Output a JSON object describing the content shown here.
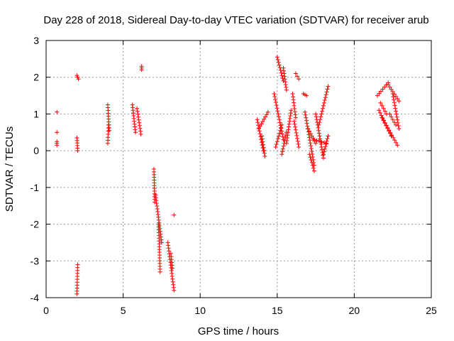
{
  "chart_data": {
    "type": "scatter",
    "title": "Day 228 of 2018, Sidereal Day-to-day VTEC variation (SDTVAR) for receiver arub",
    "xlabel": "GPS time / hours",
    "ylabel": "SDTVAR / TECUs",
    "xlim": [
      0,
      25
    ],
    "ylim": [
      -4,
      3
    ],
    "xticks": [
      0,
      5,
      10,
      15,
      20,
      25
    ],
    "yticks": [
      -4,
      -3,
      -2,
      -1,
      0,
      1,
      2,
      3
    ],
    "grid": true,
    "marker": "+",
    "color": "#ff0000",
    "series": [
      {
        "name": "SDTVAR",
        "segments": [
          [
            [
              0.7,
              1.05
            ]
          ],
          [
            [
              0.7,
              0.5
            ]
          ],
          [
            [
              0.7,
              0.15
            ],
            [
              0.7,
              0.25
            ]
          ],
          [
            [
              2.0,
              2.05
            ],
            [
              2.1,
              1.95
            ]
          ],
          [
            [
              2.0,
              0.35
            ],
            [
              2.05,
              0.0
            ]
          ],
          [
            [
              2.05,
              -3.1
            ],
            [
              2.0,
              -3.9
            ]
          ],
          [
            [
              4.0,
              1.25
            ],
            [
              4.1,
              0.55
            ]
          ],
          [
            [
              4.05,
              0.7
            ],
            [
              4.0,
              0.2
            ]
          ],
          [
            [
              5.6,
              1.25
            ],
            [
              5.8,
              0.5
            ]
          ],
          [
            [
              5.9,
              1.15
            ],
            [
              6.15,
              0.45
            ]
          ],
          [
            [
              6.2,
              2.3
            ],
            [
              6.2,
              2.2
            ]
          ],
          [
            [
              7.0,
              -0.5
            ],
            [
              7.05,
              -1.4
            ]
          ],
          [
            [
              7.1,
              -1.2
            ],
            [
              7.5,
              -2.5
            ]
          ],
          [
            [
              7.3,
              -2.0
            ],
            [
              7.4,
              -3.3
            ]
          ],
          [
            [
              7.9,
              -2.5
            ],
            [
              8.3,
              -3.8
            ]
          ],
          [
            [
              8.1,
              -2.8
            ],
            [
              8.2,
              -3.2
            ]
          ],
          [
            [
              8.3,
              -1.75
            ]
          ],
          [
            [
              13.7,
              0.85
            ],
            [
              14.1,
              0.0
            ]
          ],
          [
            [
              13.8,
              0.6
            ],
            [
              14.4,
              1.05
            ]
          ],
          [
            [
              14.0,
              0.4
            ],
            [
              14.2,
              -0.15
            ]
          ],
          [
            [
              14.8,
              1.55
            ],
            [
              15.4,
              0.3
            ]
          ],
          [
            [
              14.9,
              0.1
            ],
            [
              15.3,
              0.7
            ]
          ],
          [
            [
              15.0,
              2.55
            ],
            [
              15.4,
              1.9
            ]
          ],
          [
            [
              15.4,
              2.25
            ],
            [
              15.6,
              1.65
            ]
          ],
          [
            [
              15.3,
              -0.1
            ],
            [
              15.6,
              0.5
            ]
          ],
          [
            [
              15.6,
              0.2
            ],
            [
              15.9,
              1.1
            ]
          ],
          [
            [
              16.2,
              2.1
            ],
            [
              16.4,
              1.95
            ]
          ],
          [
            [
              16.0,
              1.55
            ],
            [
              16.2,
              0.9
            ]
          ],
          [
            [
              16.1,
              0.8
            ],
            [
              16.4,
              0.1
            ]
          ],
          [
            [
              16.7,
              1.55
            ],
            [
              16.9,
              1.5
            ]
          ],
          [
            [
              16.8,
              1.05
            ],
            [
              17.4,
              -0.4
            ]
          ],
          [
            [
              17.0,
              0.6
            ],
            [
              17.5,
              0.2
            ]
          ],
          [
            [
              17.1,
              -0.1
            ],
            [
              17.4,
              -0.55
            ]
          ],
          [
            [
              17.4,
              0.3
            ],
            [
              18.2,
              0.2
            ]
          ],
          [
            [
              17.5,
              1.0
            ],
            [
              18.0,
              -0.2
            ]
          ],
          [
            [
              17.7,
              0.7
            ],
            [
              18.3,
              1.75
            ]
          ],
          [
            [
              18.0,
              -0.1
            ],
            [
              18.3,
              0.4
            ]
          ],
          [
            [
              21.5,
              1.5
            ],
            [
              22.2,
              1.85
            ]
          ],
          [
            [
              21.6,
              1.1
            ],
            [
              22.4,
              0.4
            ]
          ],
          [
            [
              21.8,
              0.9
            ],
            [
              22.8,
              0.15
            ]
          ],
          [
            [
              22.2,
              1.8
            ],
            [
              22.9,
              1.35
            ]
          ],
          [
            [
              22.3,
              1.0
            ],
            [
              22.7,
              0.7
            ]
          ],
          [
            [
              22.5,
              1.55
            ],
            [
              22.9,
              0.6
            ]
          ],
          [
            [
              21.7,
              1.3
            ],
            [
              22.1,
              1.0
            ]
          ]
        ]
      }
    ]
  }
}
